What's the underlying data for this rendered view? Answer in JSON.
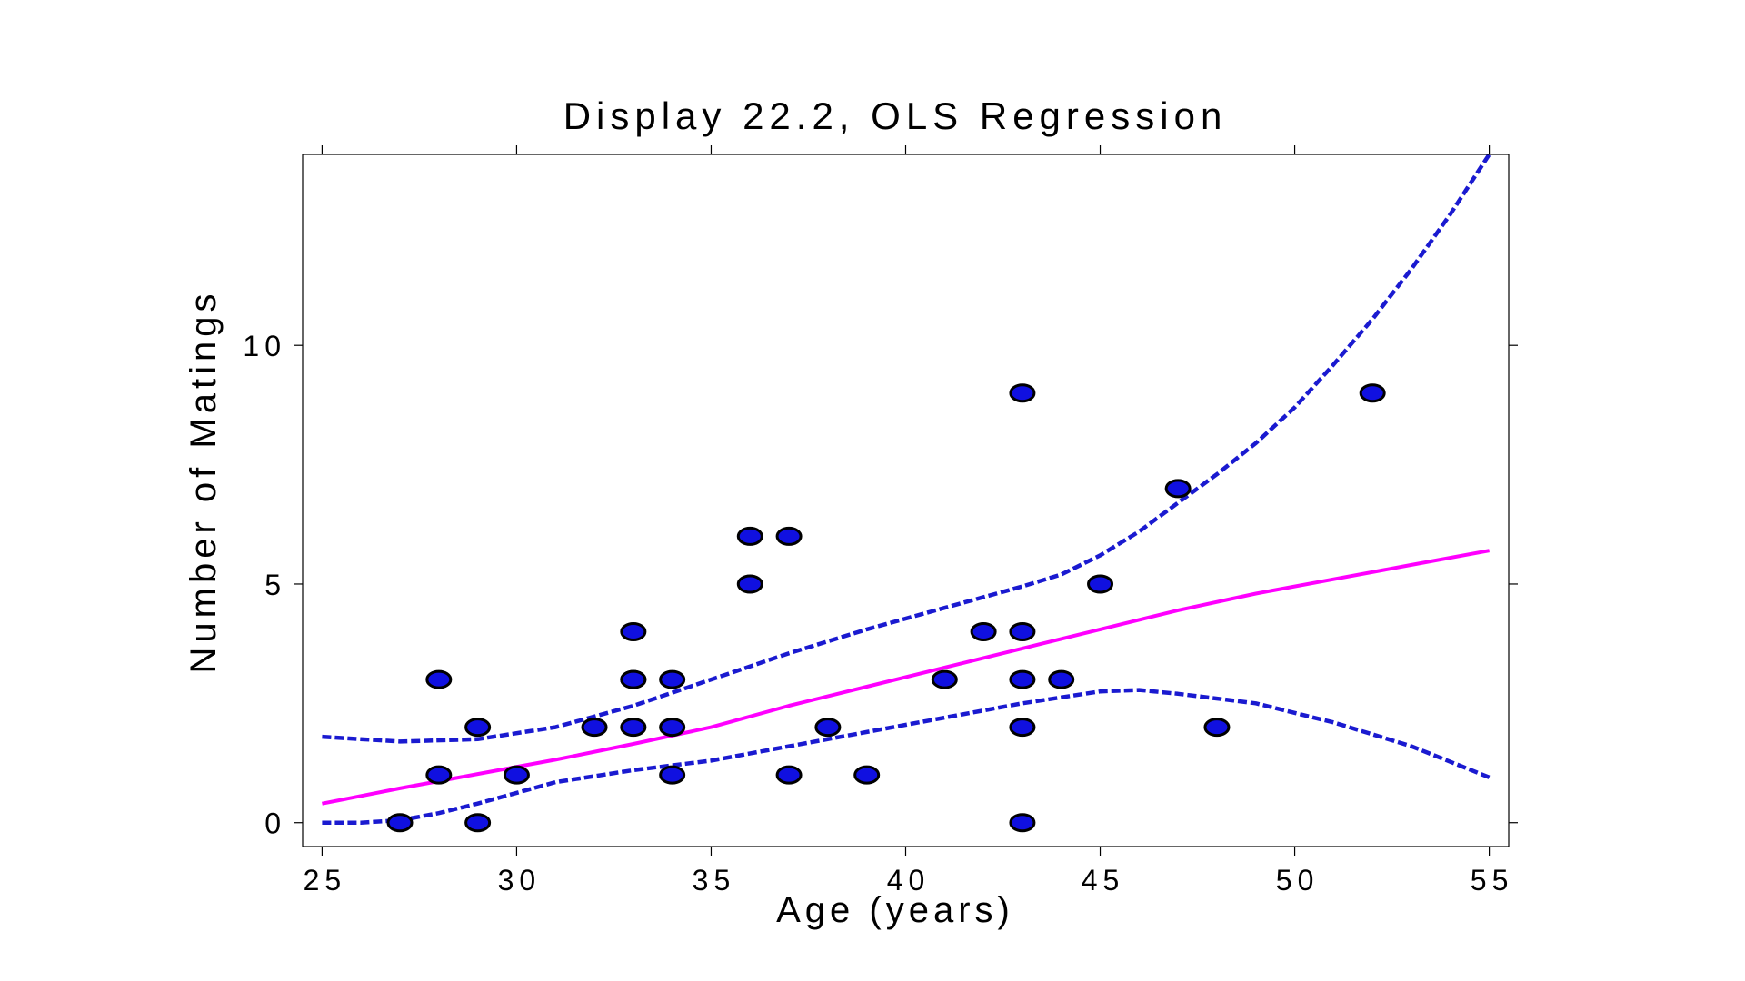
{
  "chart_data": {
    "type": "scatter",
    "title": "Display 22.2, OLS Regression",
    "xlabel": "Age (years)",
    "ylabel": "Number of Matings",
    "xlim": [
      24.5,
      55.5
    ],
    "ylim": [
      -0.5,
      14
    ],
    "xticks": [
      25,
      30,
      35,
      40,
      45,
      50,
      55
    ],
    "yticks": [
      0,
      5,
      10
    ],
    "grid": false,
    "legend": "none",
    "colors": {
      "points_fill": "#1010e0",
      "points_edge": "#000000",
      "fit_line": "#ff00ff",
      "band": "#1a1ad0"
    },
    "points": [
      {
        "x": 27,
        "y": 0
      },
      {
        "x": 28,
        "y": 1
      },
      {
        "x": 28,
        "y": 3
      },
      {
        "x": 29,
        "y": 0
      },
      {
        "x": 29,
        "y": 2
      },
      {
        "x": 30,
        "y": 1
      },
      {
        "x": 32,
        "y": 2
      },
      {
        "x": 33,
        "y": 4
      },
      {
        "x": 33,
        "y": 3
      },
      {
        "x": 33,
        "y": 3
      },
      {
        "x": 33,
        "y": 2
      },
      {
        "x": 34,
        "y": 1
      },
      {
        "x": 34,
        "y": 2
      },
      {
        "x": 34,
        "y": 3
      },
      {
        "x": 36,
        "y": 5
      },
      {
        "x": 36,
        "y": 6
      },
      {
        "x": 37,
        "y": 1
      },
      {
        "x": 37,
        "y": 6
      },
      {
        "x": 38,
        "y": 2
      },
      {
        "x": 39,
        "y": 1
      },
      {
        "x": 41,
        "y": 3
      },
      {
        "x": 42,
        "y": 4
      },
      {
        "x": 43,
        "y": 0
      },
      {
        "x": 43,
        "y": 2
      },
      {
        "x": 43,
        "y": 3
      },
      {
        "x": 43,
        "y": 4
      },
      {
        "x": 43,
        "y": 9
      },
      {
        "x": 44,
        "y": 3
      },
      {
        "x": 45,
        "y": 5
      },
      {
        "x": 47,
        "y": 7
      },
      {
        "x": 48,
        "y": 2
      },
      {
        "x": 52,
        "y": 9
      }
    ],
    "series": [
      {
        "role": "fit",
        "x": [
          25,
          27,
          29,
          31,
          33,
          35,
          37,
          39,
          41,
          43,
          45,
          47,
          49,
          51,
          53,
          55
        ],
        "y": [
          0.4,
          0.72,
          1.02,
          1.32,
          1.65,
          2.0,
          2.45,
          2.85,
          3.25,
          3.65,
          4.05,
          4.45,
          4.8,
          5.1,
          5.4,
          5.7
        ]
      },
      {
        "role": "upper-band",
        "x": [
          25,
          27,
          29,
          31,
          33,
          35,
          37,
          39,
          41,
          43,
          44,
          45,
          46,
          47,
          48,
          49,
          50,
          51,
          52,
          53,
          54,
          55
        ],
        "y": [
          1.8,
          1.7,
          1.75,
          2.0,
          2.45,
          3.0,
          3.55,
          4.05,
          4.5,
          4.95,
          5.2,
          5.6,
          6.1,
          6.7,
          7.3,
          7.95,
          8.7,
          9.6,
          10.55,
          11.6,
          12.75,
          14.0
        ]
      },
      {
        "role": "lower-band",
        "x": [
          25,
          26,
          27,
          28,
          29,
          31,
          33,
          35,
          37,
          39,
          41,
          43,
          45,
          46,
          47,
          49,
          51,
          53,
          55
        ],
        "y": [
          0.0,
          0.0,
          0.05,
          0.2,
          0.4,
          0.85,
          1.1,
          1.3,
          1.6,
          1.9,
          2.2,
          2.5,
          2.75,
          2.78,
          2.7,
          2.5,
          2.1,
          1.6,
          0.95
        ]
      }
    ]
  }
}
